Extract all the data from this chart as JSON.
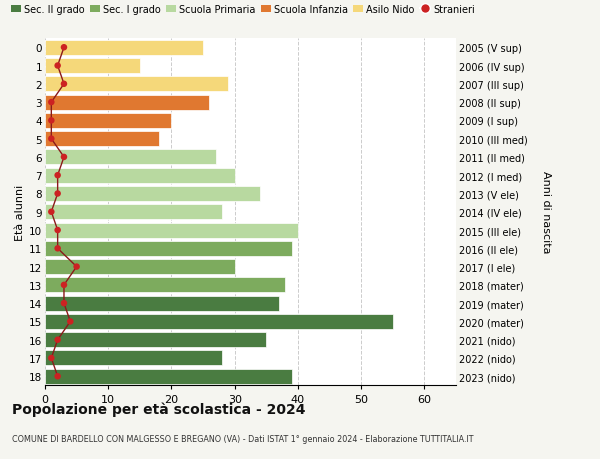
{
  "ages": [
    18,
    17,
    16,
    15,
    14,
    13,
    12,
    11,
    10,
    9,
    8,
    7,
    6,
    5,
    4,
    3,
    2,
    1,
    0
  ],
  "right_labels": [
    "2005 (V sup)",
    "2006 (IV sup)",
    "2007 (III sup)",
    "2008 (II sup)",
    "2009 (I sup)",
    "2010 (III med)",
    "2011 (II med)",
    "2012 (I med)",
    "2013 (V ele)",
    "2014 (IV ele)",
    "2015 (III ele)",
    "2016 (II ele)",
    "2017 (I ele)",
    "2018 (mater)",
    "2019 (mater)",
    "2020 (mater)",
    "2021 (nido)",
    "2022 (nido)",
    "2023 (nido)"
  ],
  "bar_values": [
    39,
    28,
    35,
    55,
    37,
    38,
    30,
    39,
    40,
    28,
    34,
    30,
    27,
    18,
    20,
    26,
    29,
    15,
    25
  ],
  "bar_colors": [
    "#4a7c41",
    "#4a7c41",
    "#4a7c41",
    "#4a7c41",
    "#4a7c41",
    "#7dab5e",
    "#7dab5e",
    "#7dab5e",
    "#b8d9a0",
    "#b8d9a0",
    "#b8d9a0",
    "#b8d9a0",
    "#b8d9a0",
    "#e07830",
    "#e07830",
    "#e07830",
    "#f5d87a",
    "#f5d87a",
    "#f5d87a"
  ],
  "stranieri_values": [
    2,
    1,
    2,
    4,
    3,
    3,
    5,
    2,
    2,
    1,
    2,
    2,
    3,
    1,
    1,
    1,
    3,
    2,
    3
  ],
  "legend_labels": [
    "Sec. II grado",
    "Sec. I grado",
    "Scuola Primaria",
    "Scuola Infanzia",
    "Asilo Nido",
    "Stranieri"
  ],
  "legend_colors": [
    "#4a7c41",
    "#7dab5e",
    "#b8d9a0",
    "#e07830",
    "#f5d87a",
    "#cc2222"
  ],
  "title": "Popolazione per età scolastica - 2024",
  "subtitle": "COMUNE DI BARDELLO CON MALGESSO E BREGANO (VA) - Dati ISTAT 1° gennaio 2024 - Elaborazione TUTTITALIA.IT",
  "ylabel": "Età alunni",
  "right_ylabel": "Anni di nascita",
  "xlabel_ticks": [
    0,
    10,
    20,
    30,
    40,
    50,
    60
  ],
  "xlim": [
    0,
    65
  ],
  "background_color": "#f5f5f0",
  "plot_bg_color": "#ffffff"
}
